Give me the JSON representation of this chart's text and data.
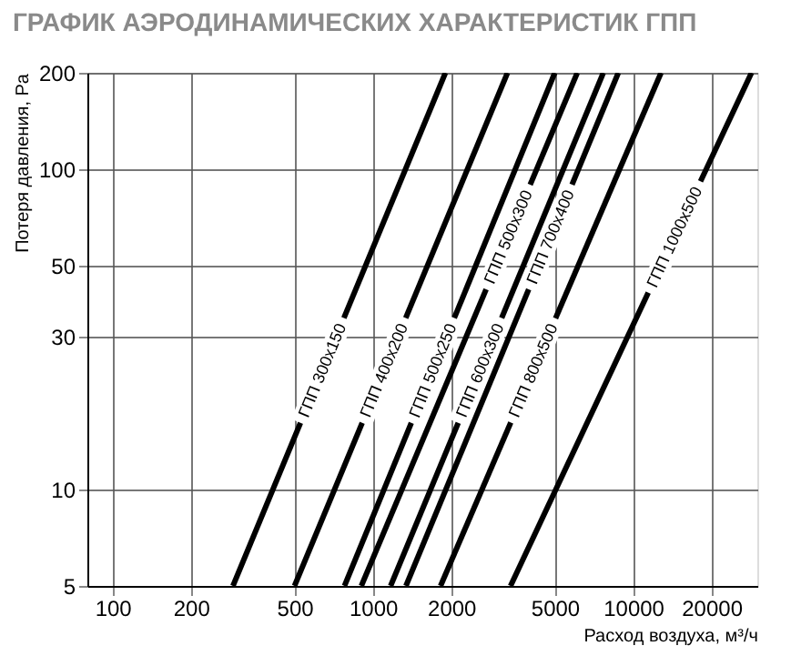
{
  "chart_data": {
    "type": "line",
    "title": "ГРАФИК АЭРОДИНАМИЧЕСКИХ ХАРАКТЕРИСТИК ГПП",
    "xlabel": "Расход воздуха, м³/ч",
    "ylabel": "Потеря давления, Pa",
    "log": "xy",
    "grid": true,
    "legend": false,
    "marker": "none",
    "line_style": "solid",
    "xlim": [
      80,
      30000
    ],
    "xticks": [
      100,
      200,
      500,
      1000,
      2000,
      5000,
      10000,
      20000
    ],
    "ylim": [
      5,
      200
    ],
    "yticks": [
      5,
      10,
      30,
      50,
      100,
      200
    ],
    "series": [
      {
        "name": "ГПП 300x150",
        "color": "#000000",
        "x": [
          290,
          1900
        ],
        "values": [
          5,
          200
        ]
      },
      {
        "name": "ГПП 400x200",
        "color": "#000000",
        "x": [
          500,
          3290
        ],
        "values": [
          5,
          200
        ]
      },
      {
        "name": "ГПП 500x250",
        "color": "#000000",
        "x": [
          778,
          5000
        ],
        "values": [
          5,
          200
        ]
      },
      {
        "name": "ГПП 500x300",
        "color": "#000000",
        "x": [
          903,
          6100
        ],
        "values": [
          5,
          200
        ]
      },
      {
        "name": "ГПП 600x300",
        "color": "#000000",
        "x": [
          1170,
          7680
        ],
        "values": [
          5,
          200
        ]
      },
      {
        "name": "ГПП 700x400",
        "color": "#000000",
        "x": [
          1340,
          8770
        ],
        "values": [
          5,
          200
        ]
      },
      {
        "name": "ГПП 800x500",
        "color": "#000000",
        "x": [
          1820,
          12800
        ],
        "values": [
          5,
          200
        ]
      },
      {
        "name": "ГПП 1000x500",
        "color": "#000000",
        "x": [
          3380,
          28500
        ],
        "values": [
          5,
          200
        ]
      }
    ]
  }
}
